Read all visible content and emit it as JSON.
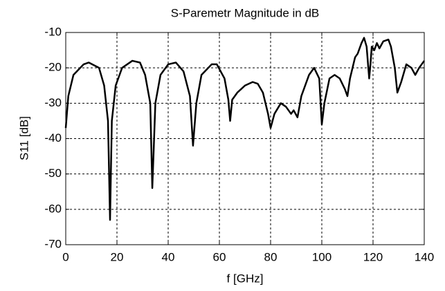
{
  "chart_data": {
    "type": "line",
    "title": "S-Paremetr Magnitude in dB",
    "x_label": "f [GHz]",
    "y_label": "S11 [dB]",
    "x": [
      0,
      1,
      3,
      7,
      9,
      13,
      15,
      16.5,
      17.3,
      18,
      19.5,
      22,
      26,
      29,
      31,
      33,
      33.8,
      35,
      37,
      40,
      43,
      46,
      48.5,
      49.7,
      51,
      53,
      57,
      59,
      62,
      63.5,
      64.2,
      65,
      67,
      70,
      73,
      75,
      77,
      79,
      80,
      81.5,
      84,
      86,
      88,
      89,
      90.5,
      92,
      95,
      97,
      99,
      100,
      101,
      103,
      105,
      107,
      109,
      110,
      111,
      113,
      114,
      115.5,
      116.5,
      117.5,
      118.5,
      119,
      119.5,
      120.5,
      121.5,
      122.5,
      124,
      126,
      127,
      128.5,
      129.5,
      131,
      133,
      135,
      136.5,
      138,
      140
    ],
    "values": [
      -37,
      -28,
      -22,
      -19,
      -18.5,
      -20,
      -25,
      -35,
      -63,
      -35,
      -25,
      -20,
      -18,
      -18.5,
      -22,
      -30,
      -54,
      -30,
      -22,
      -19,
      -18.5,
      -21,
      -28,
      -42,
      -30,
      -22,
      -19,
      -19,
      -23,
      -29,
      -35,
      -29,
      -27,
      -25,
      -24,
      -24.5,
      -27,
      -33,
      -37,
      -33,
      -30,
      -31,
      -33,
      -32,
      -34,
      -28,
      -22,
      -20,
      -23,
      -36,
      -30,
      -23,
      -22,
      -23,
      -26,
      -28,
      -23,
      -17,
      -16,
      -13,
      -11.5,
      -14,
      -23,
      -19,
      -14,
      -15,
      -13,
      -14.5,
      -12.5,
      -12,
      -14,
      -20,
      -27,
      -24,
      -19,
      -20,
      -22,
      -20,
      -18
    ],
    "color": "#000000",
    "xlim": [
      0,
      140
    ],
    "xticks": [
      0,
      20,
      40,
      60,
      80,
      100,
      120,
      140
    ],
    "ylim": [
      -70,
      -10
    ],
    "yticks": [
      -70,
      -60,
      -50,
      -40,
      -30,
      -20,
      -10
    ],
    "grid": true
  }
}
